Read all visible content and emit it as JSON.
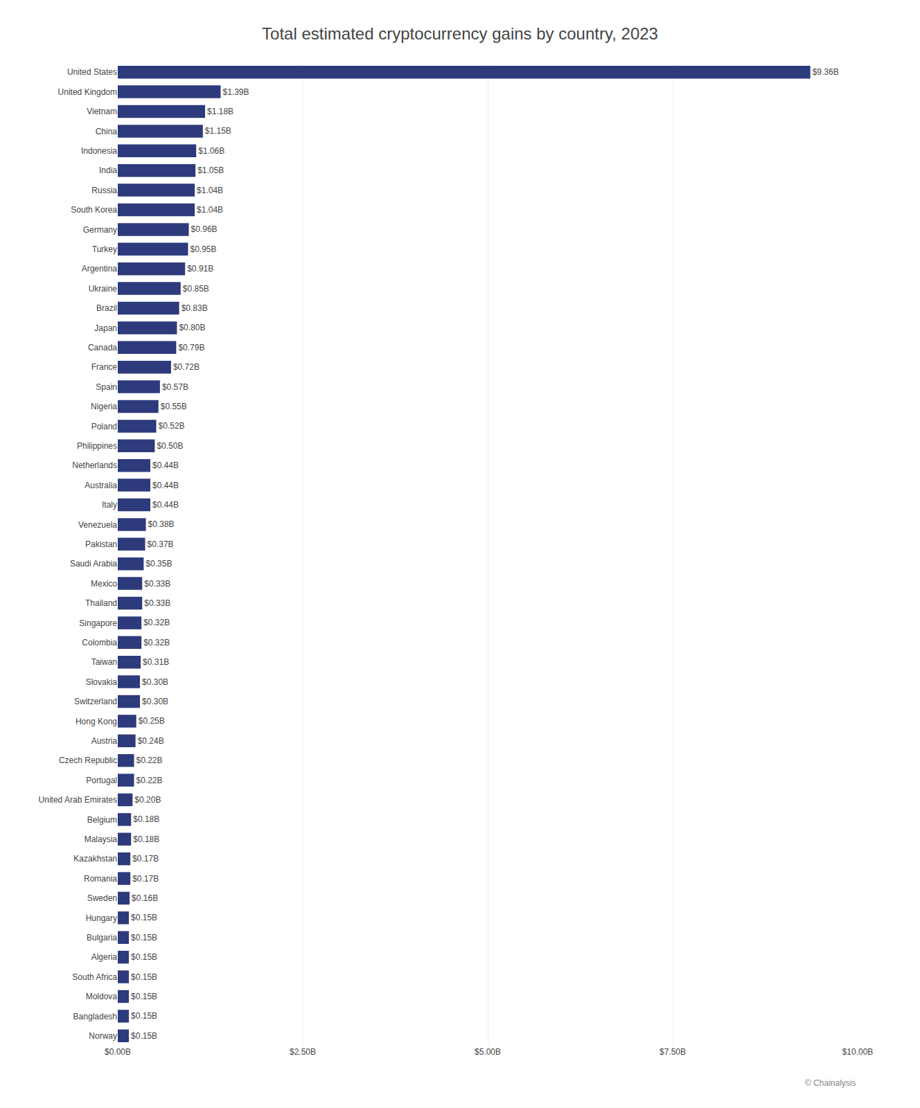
{
  "chart_data": {
    "type": "bar",
    "orientation": "horizontal",
    "title": "Total estimated cryptocurrency gains by country, 2023",
    "categories": [
      "United States",
      "United Kingdom",
      "Vietnam",
      "China",
      "Indonesia",
      "India",
      "Russia",
      "South Korea",
      "Germany",
      "Turkey",
      "Argentina",
      "Ukraine",
      "Brazil",
      "Japan",
      "Canada",
      "France",
      "Spain",
      "Nigeria",
      "Poland",
      "Philippines",
      "Netherlands",
      "Australia",
      "Italy",
      "Venezuela",
      "Pakistan",
      "Saudi Arabia",
      "Mexico",
      "Thailand",
      "Singapore",
      "Colombia",
      "Taiwan",
      "Slovakia",
      "Switzerland",
      "Hong Kong",
      "Austria",
      "Czech Republic",
      "Portugal",
      "United Arab Emirates",
      "Belgium",
      "Malaysia",
      "Kazakhstan",
      "Romania",
      "Sweden",
      "Hungary",
      "Bulgaria",
      "Algeria",
      "South Africa",
      "Moldova",
      "Bangladesh",
      "Norway"
    ],
    "values": [
      9.36,
      1.39,
      1.18,
      1.15,
      1.06,
      1.05,
      1.04,
      1.04,
      0.96,
      0.95,
      0.91,
      0.85,
      0.83,
      0.8,
      0.79,
      0.72,
      0.57,
      0.55,
      0.52,
      0.5,
      0.44,
      0.44,
      0.44,
      0.38,
      0.37,
      0.35,
      0.33,
      0.33,
      0.32,
      0.32,
      0.31,
      0.3,
      0.3,
      0.25,
      0.24,
      0.22,
      0.22,
      0.2,
      0.18,
      0.18,
      0.17,
      0.17,
      0.16,
      0.15,
      0.15,
      0.15,
      0.15,
      0.15,
      0.15,
      0.15
    ],
    "value_labels": [
      "$9.36B",
      "$1.39B",
      "$1.18B",
      "$1.15B",
      "$1.06B",
      "$1.05B",
      "$1.04B",
      "$1.04B",
      "$0.96B",
      "$0.95B",
      "$0.91B",
      "$0.85B",
      "$0.83B",
      "$0.80B",
      "$0.79B",
      "$0.72B",
      "$0.57B",
      "$0.55B",
      "$0.52B",
      "$0.50B",
      "$0.44B",
      "$0.44B",
      "$0.44B",
      "$0.38B",
      "$0.37B",
      "$0.35B",
      "$0.33B",
      "$0.33B",
      "$0.32B",
      "$0.32B",
      "$0.31B",
      "$0.30B",
      "$0.30B",
      "$0.25B",
      "$0.24B",
      "$0.22B",
      "$0.22B",
      "$0.20B",
      "$0.18B",
      "$0.18B",
      "$0.17B",
      "$0.17B",
      "$0.16B",
      "$0.15B",
      "$0.15B",
      "$0.15B",
      "$0.15B",
      "$0.15B",
      "$0.15B",
      "$0.15B"
    ],
    "data_labels": true,
    "color": "#2d3a7c",
    "xlim": [
      0,
      10.0
    ],
    "xticks": [
      {
        "value": 0,
        "label": "$0.00B"
      },
      {
        "value": 2.5,
        "label": "$2.50B"
      },
      {
        "value": 5.0,
        "label": "$5.00B"
      },
      {
        "value": 7.5,
        "label": "$7.50B"
      },
      {
        "value": 10.0,
        "label": "$10.00B"
      }
    ],
    "grid": true,
    "annotations": [
      {
        "text": "© Chainalysis"
      }
    ]
  }
}
